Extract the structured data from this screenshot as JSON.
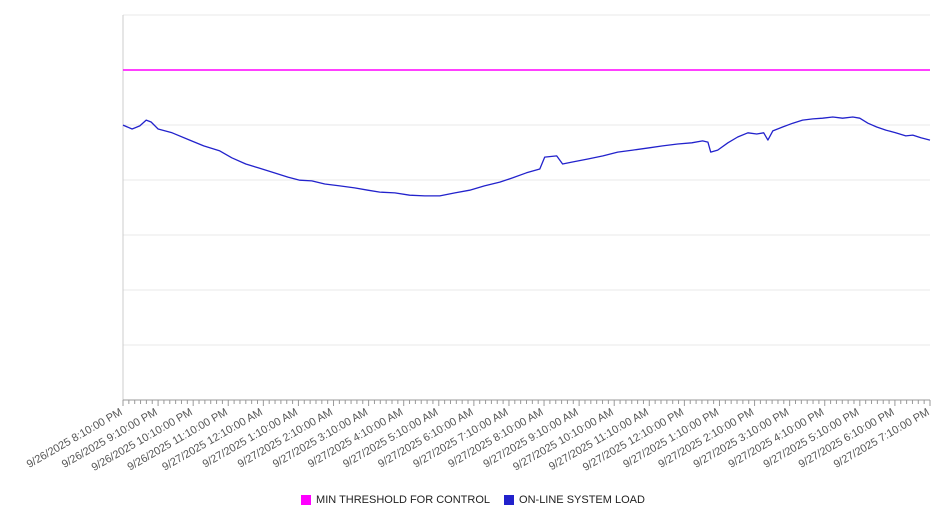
{
  "chart_data": {
    "type": "line",
    "title": "",
    "xlabel": "",
    "ylabel": "",
    "grid": true,
    "legend_position": "bottom",
    "ylim": [
      0,
      100
    ],
    "y_gridline_values": [
      0,
      14.29,
      28.57,
      42.86,
      57.14,
      71.43,
      85.71,
      100
    ],
    "axis_color": "#999999",
    "y_axis_color": "#cccccc",
    "grid_color": "#e8e8e8",
    "label_color": "#555555",
    "x_labels": [
      "9/26/2025 8:10:00 PM",
      "9/26/2025 9:10:00 PM",
      "9/26/2025 10:10:00 PM",
      "9/26/2025 11:10:00 PM",
      "9/27/2025 12:10:00 AM",
      "9/27/2025 1:10:00 AM",
      "9/27/2025 2:10:00 AM",
      "9/27/2025 3:10:00 AM",
      "9/27/2025 4:10:00 AM",
      "9/27/2025 5:10:00 AM",
      "9/27/2025 6:10:00 AM",
      "9/27/2025 7:10:00 AM",
      "9/27/2025 8:10:00 AM",
      "9/27/2025 9:10:00 AM",
      "9/27/2025 10:10:00 AM",
      "9/27/2025 11:10:00 AM",
      "9/27/2025 12:10:00 PM",
      "9/27/2025 1:10:00 PM",
      "9/27/2025 2:10:00 PM",
      "9/27/2025 3:10:00 PM",
      "9/27/2025 4:10:00 PM",
      "9/27/2025 5:10:00 PM",
      "9/27/2025 6:10:00 PM",
      "9/27/2025 7:10:00 PM"
    ],
    "series": [
      {
        "name": "MIN THRESHOLD FOR CONTROL",
        "type": "threshold",
        "color": "#ff00ff",
        "value": 85.71
      },
      {
        "name": "ON-LINE SYSTEM LOAD",
        "type": "line",
        "color": "#2222cc",
        "points": [
          [
            0,
            71.4
          ],
          [
            0.26,
            70.4
          ],
          [
            0.48,
            71.2
          ],
          [
            0.66,
            72.7
          ],
          [
            0.8,
            72.2
          ],
          [
            1.0,
            70.4
          ],
          [
            1.4,
            69.4
          ],
          [
            1.9,
            67.5
          ],
          [
            2.3,
            66.0
          ],
          [
            2.76,
            64.7
          ],
          [
            3.1,
            62.9
          ],
          [
            3.5,
            61.3
          ],
          [
            3.85,
            60.3
          ],
          [
            4.25,
            59.2
          ],
          [
            4.7,
            57.9
          ],
          [
            5.04,
            57.1
          ],
          [
            5.38,
            56.9
          ],
          [
            5.75,
            56.1
          ],
          [
            6.18,
            55.6
          ],
          [
            6.6,
            55.1
          ],
          [
            6.98,
            54.5
          ],
          [
            7.32,
            54.0
          ],
          [
            7.75,
            53.8
          ],
          [
            8.17,
            53.2
          ],
          [
            8.6,
            53.0
          ],
          [
            9.03,
            53.0
          ],
          [
            9.46,
            53.8
          ],
          [
            9.88,
            54.5
          ],
          [
            10.3,
            55.6
          ],
          [
            10.74,
            56.6
          ],
          [
            11.1,
            57.7
          ],
          [
            11.5,
            59.0
          ],
          [
            11.88,
            60.0
          ],
          [
            12.02,
            63.1
          ],
          [
            12.36,
            63.4
          ],
          [
            12.53,
            61.3
          ],
          [
            12.79,
            61.8
          ],
          [
            13.25,
            62.6
          ],
          [
            13.68,
            63.4
          ],
          [
            14.1,
            64.4
          ],
          [
            14.53,
            64.9
          ],
          [
            15.0,
            65.5
          ],
          [
            15.38,
            66.0
          ],
          [
            15.81,
            66.5
          ],
          [
            16.21,
            66.8
          ],
          [
            16.52,
            67.3
          ],
          [
            16.67,
            67.0
          ],
          [
            16.75,
            64.4
          ],
          [
            16.95,
            64.9
          ],
          [
            17.24,
            66.8
          ],
          [
            17.52,
            68.3
          ],
          [
            17.81,
            69.4
          ],
          [
            18.06,
            69.1
          ],
          [
            18.26,
            69.4
          ],
          [
            18.38,
            67.5
          ],
          [
            18.52,
            69.9
          ],
          [
            18.8,
            70.9
          ],
          [
            19.09,
            71.9
          ],
          [
            19.37,
            72.7
          ],
          [
            19.66,
            73.0
          ],
          [
            19.94,
            73.2
          ],
          [
            20.23,
            73.5
          ],
          [
            20.51,
            73.2
          ],
          [
            20.8,
            73.5
          ],
          [
            21.0,
            73.2
          ],
          [
            21.23,
            71.9
          ],
          [
            21.48,
            70.9
          ],
          [
            21.74,
            70.1
          ],
          [
            22.02,
            69.4
          ],
          [
            22.31,
            68.6
          ],
          [
            22.51,
            68.8
          ],
          [
            22.74,
            68.1
          ],
          [
            23.0,
            67.5
          ]
        ]
      }
    ]
  }
}
